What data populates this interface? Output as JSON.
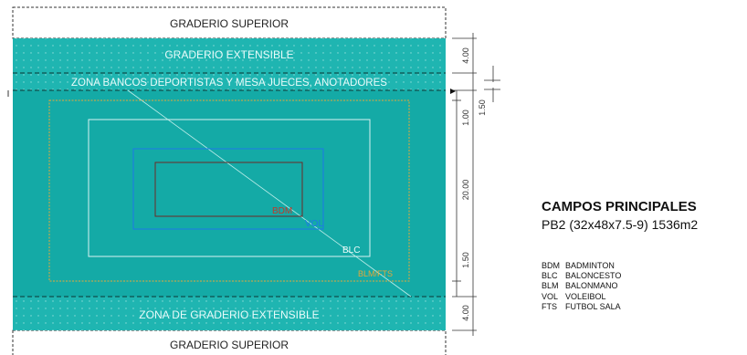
{
  "colors": {
    "court": "#14aaa6",
    "court_light": "#1fb5b1",
    "bdm": "#c0392b",
    "vol": "#1e78e8",
    "blc": "#d9f3f1",
    "blm": "#e3a83b",
    "dims": "#333333"
  },
  "zones": {
    "top_stand": "GRADERIO SUPERIOR",
    "top_extensible": "GRADERIO EXTENSIBLE",
    "benches": "ZONA BANCOS DEPORTISTAS Y MESA JUECES, ANOTADORES",
    "bottom_extensible": "ZONA DE GRADERIO EXTENSIBLE",
    "bottom_stand": "GRADERIO SUPERIOR"
  },
  "court_labels": {
    "bdm": "BDM",
    "vol": "VOL",
    "blc": "BLC",
    "blm": "BLM/FTS"
  },
  "dimensions": {
    "d1": "4.00",
    "d2": "1.00",
    "d3": "1.50",
    "d4": "20.00",
    "d5": "1.50",
    "d6": "4.00"
  },
  "legend": {
    "title": "CAMPOS PRINCIPALES",
    "subtitle": "PB2 (32x48x7.5-9) 1536m2",
    "items": [
      {
        "code": "BDM",
        "name": "BADMINTON"
      },
      {
        "code": "BLC",
        "name": "BALONCESTO"
      },
      {
        "code": "BLM",
        "name": "BALONMANO"
      },
      {
        "code": "VOL",
        "name": "VOLEIBOL"
      },
      {
        "code": "FTS",
        "name": "FUTBOL SALA"
      }
    ]
  }
}
